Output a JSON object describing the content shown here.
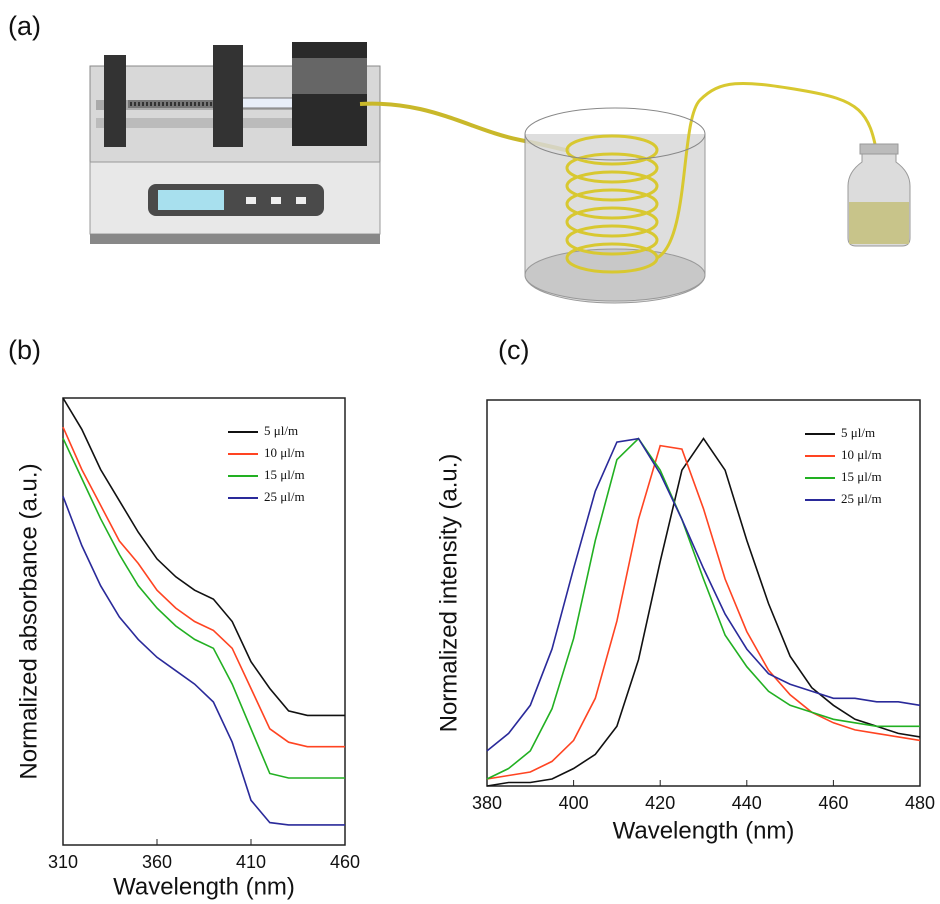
{
  "panels": [
    "(a)",
    "(b)",
    "(c)"
  ],
  "chart_data": [
    {
      "type": "line",
      "xlabel": "Wavelength (nm)",
      "ylabel": "Normalized absorbance (a.u.)",
      "x": [
        310,
        320,
        330,
        340,
        350,
        360,
        370,
        380,
        390,
        400,
        410,
        420,
        430,
        440,
        450,
        460
      ],
      "xlim": [
        310,
        460
      ],
      "xticks": [
        310,
        360,
        410,
        460
      ],
      "ylim": [
        0,
        1
      ],
      "legend": "upper right",
      "series": [
        {
          "name": "5 μl/m",
          "color": "#111111",
          "values": [
            1.0,
            0.93,
            0.84,
            0.77,
            0.7,
            0.64,
            0.6,
            0.57,
            0.55,
            0.5,
            0.41,
            0.35,
            0.3,
            0.29,
            0.29,
            0.29
          ]
        },
        {
          "name": "10 μl/m",
          "color": "#ff4422",
          "values": [
            0.935,
            0.84,
            0.76,
            0.68,
            0.63,
            0.57,
            0.53,
            0.5,
            0.48,
            0.44,
            0.35,
            0.26,
            0.23,
            0.22,
            0.22,
            0.22
          ]
        },
        {
          "name": "15 μl/m",
          "color": "#22b022",
          "values": [
            0.91,
            0.82,
            0.73,
            0.65,
            0.58,
            0.53,
            0.49,
            0.46,
            0.44,
            0.36,
            0.26,
            0.16,
            0.15,
            0.15,
            0.15,
            0.15
          ]
        },
        {
          "name": "25 μl/m",
          "color": "#2a2a9a",
          "values": [
            0.78,
            0.67,
            0.58,
            0.51,
            0.46,
            0.42,
            0.39,
            0.36,
            0.32,
            0.23,
            0.1,
            0.05,
            0.045,
            0.045,
            0.045,
            0.045
          ]
        }
      ]
    },
    {
      "type": "line",
      "xlabel": "Wavelength (nm)",
      "ylabel": "Normalized intensity (a.u.)",
      "x": [
        380,
        385,
        390,
        395,
        400,
        405,
        410,
        415,
        420,
        425,
        430,
        435,
        440,
        445,
        450,
        455,
        460,
        465,
        470,
        475,
        480
      ],
      "xlim": [
        380,
        480
      ],
      "xticks": [
        380,
        400,
        420,
        440,
        460,
        480
      ],
      "ylim": [
        0,
        1.1
      ],
      "legend": "upper right",
      "series": [
        {
          "name": "5 μl/m",
          "color": "#111111",
          "values": [
            0.0,
            0.01,
            0.01,
            0.02,
            0.05,
            0.09,
            0.17,
            0.36,
            0.64,
            0.9,
            0.99,
            0.9,
            0.7,
            0.52,
            0.37,
            0.28,
            0.23,
            0.19,
            0.17,
            0.15,
            0.14
          ]
        },
        {
          "name": "10 μl/m",
          "color": "#ff4422",
          "values": [
            0.02,
            0.03,
            0.04,
            0.07,
            0.13,
            0.25,
            0.47,
            0.76,
            0.97,
            0.96,
            0.79,
            0.59,
            0.44,
            0.33,
            0.26,
            0.21,
            0.18,
            0.16,
            0.15,
            0.14,
            0.13
          ]
        },
        {
          "name": "15 μl/m",
          "color": "#22b022",
          "values": [
            0.02,
            0.05,
            0.1,
            0.22,
            0.42,
            0.7,
            0.93,
            0.99,
            0.9,
            0.76,
            0.59,
            0.43,
            0.34,
            0.27,
            0.23,
            0.21,
            0.19,
            0.18,
            0.17,
            0.17,
            0.17
          ]
        },
        {
          "name": "25 μl/m",
          "color": "#2a2a9a",
          "values": [
            0.1,
            0.15,
            0.23,
            0.39,
            0.62,
            0.84,
            0.98,
            0.99,
            0.89,
            0.76,
            0.62,
            0.49,
            0.39,
            0.32,
            0.29,
            0.27,
            0.25,
            0.25,
            0.24,
            0.24,
            0.23
          ]
        }
      ]
    }
  ]
}
